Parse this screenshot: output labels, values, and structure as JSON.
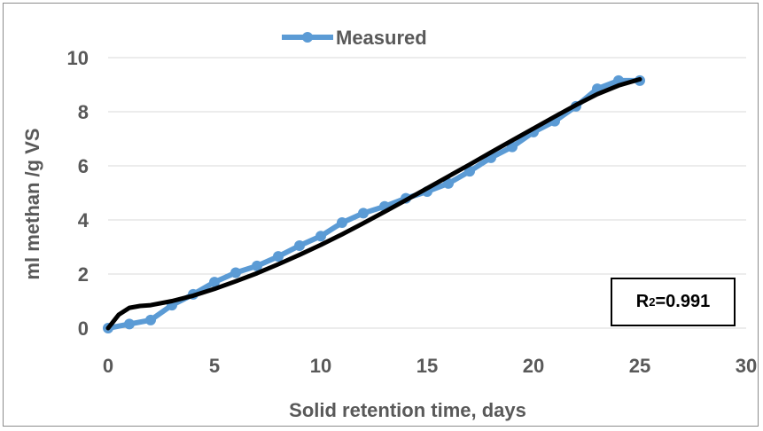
{
  "chart_data": {
    "type": "line",
    "xlabel": "Solid retention time, days",
    "ylabel": "ml methan /g VS",
    "xlim": [
      0,
      30
    ],
    "ylim": [
      0,
      10
    ],
    "xticks": [
      "0",
      "5",
      "10",
      "15",
      "20",
      "25",
      "30"
    ],
    "yticks": [
      "0",
      "2",
      "4",
      "6",
      "8",
      "10"
    ],
    "grid": "horizontal",
    "legend_position": "top",
    "series": [
      {
        "name": "Measured",
        "color": "#5b9bd5",
        "marker": "circle",
        "x": [
          0,
          1,
          2,
          3,
          4,
          5,
          6,
          7,
          8,
          9,
          10,
          11,
          12,
          13,
          14,
          15,
          16,
          17,
          18,
          19,
          20,
          21,
          22,
          23,
          24,
          25
        ],
        "y": [
          0,
          0.15,
          0.3,
          0.85,
          1.25,
          1.7,
          2.05,
          2.3,
          2.65,
          3.05,
          3.4,
          3.9,
          4.25,
          4.5,
          4.8,
          5.05,
          5.35,
          5.8,
          6.3,
          6.7,
          7.25,
          7.65,
          8.2,
          8.85,
          9.15,
          9.15
        ]
      }
    ],
    "fit": {
      "color": "#000000",
      "x": [
        0,
        0.5,
        1,
        1.5,
        2,
        3,
        4,
        5,
        6,
        7,
        8,
        9,
        10,
        11,
        12,
        13,
        14,
        15,
        16,
        17,
        18,
        19,
        20,
        21,
        22,
        23,
        24,
        25
      ],
      "y": [
        0,
        0.5,
        0.75,
        0.82,
        0.85,
        1.0,
        1.2,
        1.45,
        1.73,
        2.03,
        2.36,
        2.71,
        3.08,
        3.47,
        3.88,
        4.3,
        4.73,
        5.17,
        5.61,
        6.05,
        6.5,
        6.94,
        7.38,
        7.82,
        8.25,
        8.65,
        8.97,
        9.2
      ]
    },
    "annotation": {
      "prefix": "R",
      "sup": "2",
      "value": "=0.991"
    }
  }
}
